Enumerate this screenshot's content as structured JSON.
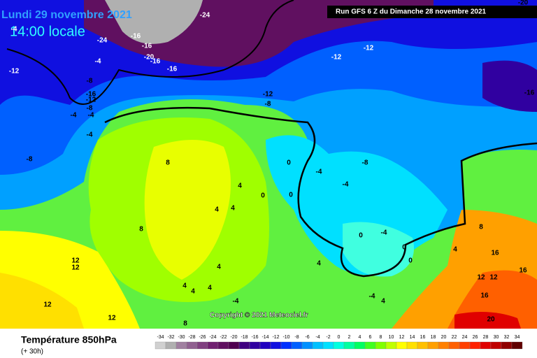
{
  "header": {
    "date": "Lundi 29 novembre 2021",
    "time": "14:00 locale",
    "run": "Run GFS 6 Z du Dimanche 28 novembre 2021"
  },
  "copyright": "Copyright © 2021 Meteociel.fr",
  "legend": {
    "title": "Température 850hPa",
    "subtitle": "(+ 30h)",
    "ticks": [
      -34,
      -32,
      -30,
      -28,
      -26,
      -24,
      -22,
      -20,
      -18,
      -16,
      -14,
      -12,
      -10,
      -8,
      -6,
      -4,
      -2,
      0,
      2,
      4,
      6,
      8,
      10,
      12,
      14,
      16,
      18,
      20,
      22,
      24,
      26,
      28,
      30,
      32,
      34
    ],
    "colors": [
      "#d0d0d0",
      "#b0b0b0",
      "#a080a0",
      "#906090",
      "#804080",
      "#702070",
      "#601060",
      "#500050",
      "#400080",
      "#3000a0",
      "#2000c0",
      "#1010e0",
      "#0030ff",
      "#0060ff",
      "#0090ff",
      "#00c0ff",
      "#00e0ff",
      "#00ffe0",
      "#00ffa0",
      "#00ff60",
      "#40ff20",
      "#80ff00",
      "#c0ff00",
      "#ffff00",
      "#ffe000",
      "#ffc000",
      "#ffa000",
      "#ff8000",
      "#ff6000",
      "#ff4000",
      "#ff2000",
      "#e00000",
      "#c00000",
      "#900000",
      "#600000"
    ]
  },
  "contour_labels": [
    "-24",
    "-16",
    "-16",
    "-20",
    "-16",
    "-16",
    "-24",
    "-4",
    "-12",
    "-4",
    "-8",
    "-16",
    "-12",
    "-8",
    "-4",
    "-4",
    "-4",
    "-8",
    "-12",
    "-8",
    "-12",
    "-12",
    "-16",
    "-20",
    "8",
    "4",
    "4",
    "4",
    "8",
    "0",
    "0",
    "0",
    "-4",
    "-4",
    "-8",
    "-4",
    "0",
    "0",
    "0",
    "4",
    "4",
    "4",
    "4",
    "4",
    "12",
    "12",
    "12",
    "12",
    "8",
    "-4",
    "-4",
    "4",
    "16",
    "16",
    "16",
    "20",
    "8",
    "4",
    "12",
    "12"
  ]
}
